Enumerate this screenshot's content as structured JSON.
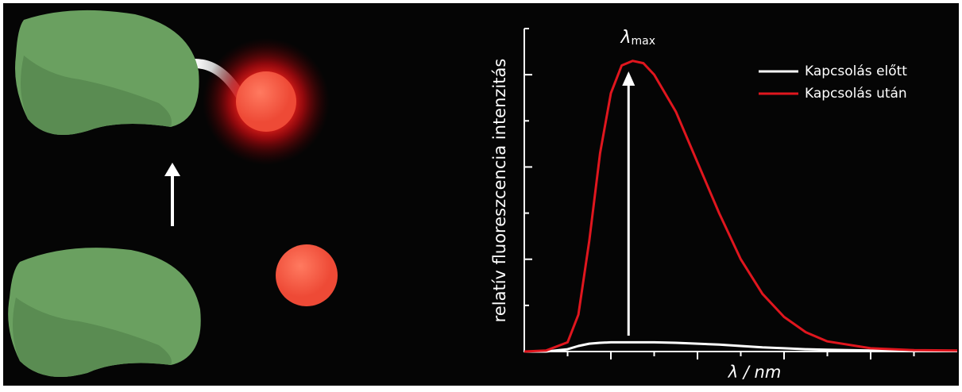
{
  "chart_data": {
    "type": "line",
    "ylabel": "relatív fluoreszcencia intenzitás",
    "xlabel": "λ / nm",
    "annotation": {
      "symbol": "λ",
      "subscript": "max"
    },
    "x": [
      0,
      0.5,
      1,
      1.25,
      1.5,
      1.75,
      2,
      2.25,
      2.5,
      2.75,
      3,
      3.5,
      4,
      4.5,
      5,
      5.5,
      6,
      6.5,
      7,
      8,
      9,
      10
    ],
    "series": [
      {
        "name": "Kapcsolás előtt",
        "color": "#ffffff",
        "values": [
          0,
          0,
          0.05,
          0.12,
          0.17,
          0.19,
          0.2,
          0.2,
          0.2,
          0.2,
          0.2,
          0.19,
          0.17,
          0.15,
          0.12,
          0.09,
          0.07,
          0.05,
          0.04,
          0.02,
          0.01,
          0.01
        ]
      },
      {
        "name": "Kapcsolás után",
        "color": "#e0161e",
        "values": [
          0,
          0.02,
          0.2,
          0.8,
          2.4,
          4.3,
          5.6,
          6.2,
          6.3,
          6.25,
          6.0,
          5.2,
          4.1,
          3.0,
          2.0,
          1.25,
          0.75,
          0.42,
          0.22,
          0.07,
          0.03,
          0.02
        ]
      }
    ],
    "xlim": [
      0,
      10
    ],
    "ylim": [
      0,
      7
    ],
    "xticks": [
      1,
      2,
      3,
      4,
      5,
      6,
      7,
      8,
      9
    ],
    "yticks": [
      1,
      2,
      3,
      4,
      5,
      6,
      7
    ],
    "legend": "top-right"
  }
}
